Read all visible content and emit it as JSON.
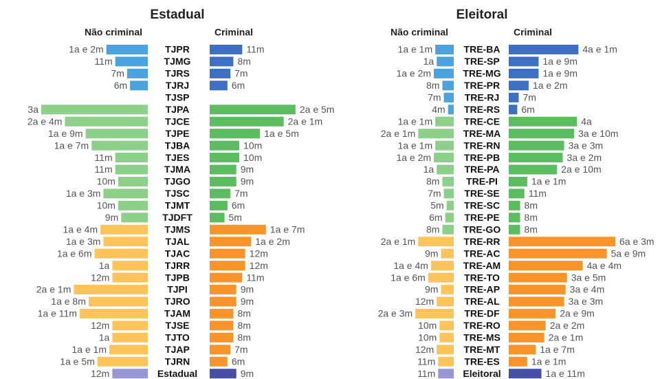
{
  "chart_data": [
    {
      "type": "butterfly",
      "title": "Estadual",
      "categories": [
        "TJPR",
        "TJMG",
        "TJRS",
        "TJRJ",
        "TJSP",
        "TJPA",
        "TJCE",
        "TJPE",
        "TJBA",
        "TJES",
        "TJMA",
        "TJGO",
        "TJSC",
        "TJMT",
        "TJDFT",
        "TJMS",
        "TJAL",
        "TJAC",
        "TJRR",
        "TJPB",
        "TJPI",
        "TJRO",
        "TJAM",
        "TJSE",
        "TJTO",
        "TJAP",
        "TJRN",
        "Estadual"
      ],
      "series": [
        {
          "name": "Não criminal",
          "side": "left",
          "values": [
            14,
            11,
            7,
            6,
            null,
            36,
            28,
            21,
            19,
            11,
            11,
            10,
            15,
            10,
            9,
            16,
            15,
            18,
            12,
            12,
            25,
            20,
            23,
            12,
            12,
            13,
            17,
            12
          ],
          "value_labels": [
            "1a e 2m",
            "11m",
            "7m",
            "6m",
            null,
            "3a",
            "2a e 4m",
            "1a e 9m",
            "1a e 7m",
            "11m",
            "11m",
            "10m",
            "1a e 3m",
            "10m",
            "9m",
            "1a e 4m",
            "1a e 3m",
            "1a e 6m",
            "1a",
            "12m",
            "2a e 1m",
            "1a e 8m",
            "1a e 11m",
            "12m",
            "1a",
            "1a e 1m",
            "1a e 5m",
            "12m"
          ],
          "colors": [
            "#4aa3df",
            "#4aa3df",
            "#4aa3df",
            "#4aa3df",
            "#4aa3df",
            "#8dd08a",
            "#8dd08a",
            "#8dd08a",
            "#8dd08a",
            "#8dd08a",
            "#8dd08a",
            "#8dd08a",
            "#8dd08a",
            "#8dd08a",
            "#8dd08a",
            "#fdc45c",
            "#fdc45c",
            "#fdc45c",
            "#fdc45c",
            "#fdc45c",
            "#fdc45c",
            "#fdc45c",
            "#fdc45c",
            "#fdc45c",
            "#fdc45c",
            "#fdc45c",
            "#fdc45c",
            "#9896d6"
          ]
        },
        {
          "name": "Criminal",
          "side": "right",
          "values": [
            11,
            8,
            7,
            6,
            null,
            29,
            25,
            17,
            10,
            10,
            9,
            9,
            7,
            6,
            5,
            19,
            14,
            12,
            12,
            11,
            9,
            9,
            8,
            8,
            8,
            7,
            6,
            9
          ],
          "value_labels": [
            "11m",
            "8m",
            "7m",
            "6m",
            null,
            "2a e 5m",
            "2a e 1m",
            "1a e 5m",
            "10m",
            "10m",
            "9m",
            "9m",
            "7m",
            "6m",
            "5m",
            "1a e 7m",
            "1a e 2m",
            "12m",
            "12m",
            "11m",
            "9m",
            "9m",
            "8m",
            "8m",
            "8m",
            "7m",
            "6m",
            "9m"
          ],
          "colors": [
            "#3d6fc2",
            "#3d6fc2",
            "#3d6fc2",
            "#3d6fc2",
            "#3d6fc2",
            "#5bbd60",
            "#5bbd60",
            "#5bbd60",
            "#5bbd60",
            "#5bbd60",
            "#5bbd60",
            "#5bbd60",
            "#5bbd60",
            "#5bbd60",
            "#5bbd60",
            "#f7952c",
            "#f7952c",
            "#f7952c",
            "#f7952c",
            "#f7952c",
            "#f7952c",
            "#f7952c",
            "#f7952c",
            "#f7952c",
            "#f7952c",
            "#f7952c",
            "#f7952c",
            "#4651a6"
          ]
        }
      ]
    },
    {
      "type": "butterfly",
      "title": "Eleitoral",
      "categories": [
        "TRE-BA",
        "TRE-SP",
        "TRE-MG",
        "TRE-PR",
        "TRE-RJ",
        "TRE-RS",
        "TRE-CE",
        "TRE-MA",
        "TRE-RN",
        "TRE-PB",
        "TRE-PA",
        "TRE-PI",
        "TRE-SE",
        "TRE-SC",
        "TRE-PE",
        "TRE-GO",
        "TRE-RR",
        "TRE-AC",
        "TRE-AM",
        "TRE-TO",
        "TRE-AP",
        "TRE-AL",
        "TRE-DF",
        "TRE-RO",
        "TRE-MS",
        "TRE-MT",
        "TRE-ES",
        "Eleitoral"
      ],
      "series": [
        {
          "name": "Não criminal",
          "side": "left",
          "values": [
            13,
            12,
            14,
            8,
            7,
            4,
            13,
            25,
            13,
            14,
            12,
            8,
            7,
            5,
            6,
            8,
            25,
            9,
            16,
            18,
            9,
            12,
            27,
            10,
            10,
            12,
            11,
            11
          ],
          "value_labels": [
            "1a e 1m",
            "1a",
            "1a e 2m",
            "8m",
            "7m",
            "4m",
            "1a e 1m",
            "2a e 1m",
            "1a e 1m",
            "1a e 2m",
            "1a",
            "8m",
            "7m",
            "5m",
            "6m",
            "8m",
            "2a e 1m",
            "9m",
            "1a e 4m",
            "1a e 6m",
            "9m",
            "12m",
            "2a e 3m",
            "10m",
            "10m",
            "12m",
            "11m",
            "11m"
          ],
          "colors": [
            "#4aa3df",
            "#4aa3df",
            "#4aa3df",
            "#4aa3df",
            "#4aa3df",
            "#4aa3df",
            "#8dd08a",
            "#8dd08a",
            "#8dd08a",
            "#8dd08a",
            "#8dd08a",
            "#8dd08a",
            "#8dd08a",
            "#8dd08a",
            "#8dd08a",
            "#8dd08a",
            "#fdc45c",
            "#fdc45c",
            "#fdc45c",
            "#fdc45c",
            "#fdc45c",
            "#fdc45c",
            "#fdc45c",
            "#fdc45c",
            "#fdc45c",
            "#fdc45c",
            "#fdc45c",
            "#9896d6"
          ]
        },
        {
          "name": "Criminal",
          "side": "right",
          "values": [
            49,
            21,
            21,
            14,
            7,
            6,
            48,
            46,
            39,
            38,
            34,
            13,
            11,
            8,
            8,
            8,
            75,
            69,
            52,
            41,
            40,
            39,
            33,
            26,
            25,
            19,
            13,
            23
          ],
          "value_labels": [
            "4a e 1m",
            "1a e 9m",
            "1a e 9m",
            "1a e 2m",
            "7m",
            "6m",
            "4a",
            "3a e 10m",
            "3a e 3m",
            "3a e 2m",
            "2a e 10m",
            "1a e 1m",
            "11m",
            "8m",
            "8m",
            "8m",
            "6a e 3m",
            "5a e 9m",
            "4a e 4m",
            "3a e 5m",
            "3a e 4m",
            "3a e 3m",
            "2a e 9m",
            "2a e 2m",
            "2a e 1m",
            "1a e 7m",
            "1a e 1m",
            "1a e 11m"
          ],
          "colors": [
            "#3d6fc2",
            "#3d6fc2",
            "#3d6fc2",
            "#3d6fc2",
            "#3d6fc2",
            "#3d6fc2",
            "#5bbd60",
            "#5bbd60",
            "#5bbd60",
            "#5bbd60",
            "#5bbd60",
            "#5bbd60",
            "#5bbd60",
            "#5bbd60",
            "#5bbd60",
            "#5bbd60",
            "#f7952c",
            "#f7952c",
            "#f7952c",
            "#f7952c",
            "#f7952c",
            "#f7952c",
            "#f7952c",
            "#f7952c",
            "#f7952c",
            "#f7952c",
            "#f7952c",
            "#4651a6"
          ]
        }
      ]
    }
  ]
}
